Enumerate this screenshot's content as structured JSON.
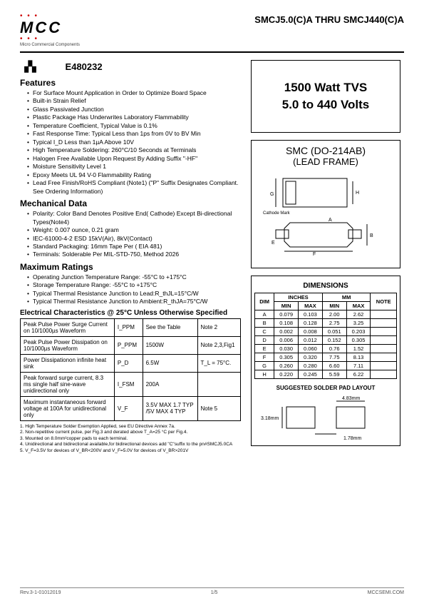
{
  "header": {
    "logo_text": "MCC",
    "logo_sub": "Micro Commercial Components",
    "part_range": "SMCJ5.0(C)A THRU SMCJ440(C)A"
  },
  "cert": {
    "ul": "UL",
    "number": "E480232"
  },
  "sections": {
    "features_h": "Features",
    "features": [
      "For Surface Mount Application in Order to Optimize Board Space",
      "Built-in Strain Relief",
      "Glass Passivated Junction",
      "Plastic Package Has Underwrites Laboratory Flammability",
      "Temperature Coefficient, Typical Value is 0.1%",
      "Fast Response Time: Typical Less than 1ps from 0V to BV Min",
      "Typical I_D Less than 1µA Above 10V",
      "High Temperature Soldering: 260°C/10 Seconds at Terminals",
      "Halogen Free Available Upon Request By Adding Suffix \"-HF\"",
      "Moisture Sensitivity Level 1",
      "Epoxy Meets UL 94 V-0 Flammability Rating",
      "Lead Free Finish/RoHS Compliant (Note1) (\"P\" Suffix Designates Compliant. See Ordering Information)"
    ],
    "mech_h": "Mechanical Data",
    "mech": [
      "Polarity: Color Band Denotes Positive End( Cathode) Except Bi-directional Types(Note4)",
      "Weight: 0.007 ounce, 0.21 gram",
      "IEC-61000-4-2 ESD 15kV(Air), 8kV(Contact)",
      "Standard Packaging: 16mm Tape Per ( EIA 481)",
      "Terminals: Solderable Per MIL-STD-750, Method 2026"
    ],
    "max_h": "Maximum Ratings",
    "max": [
      "Operating Junction Temperature Range: -55°C to +175°C",
      "Storage Temperature Range: -55°C to +175°C",
      "Typical Thermal Resistance Junction to Lead:R_thJL=15°C/W",
      "Typical Thermal Resistance Junction to Ambient:R_thJA=75°C/W"
    ],
    "elec_h": "Electrical Characteristics @ 25°C Unless Otherwise Specified"
  },
  "big_box": {
    "l1": "1500 Watt TVS",
    "l2": "5.0 to 440 Volts"
  },
  "pkg": {
    "l1": "SMC (DO-214AB)",
    "l2": "(LEAD FRAME)",
    "cathode": "Cathode Mark"
  },
  "elec_table": {
    "rows": [
      {
        "param": "Peak Pulse Power Surge Current on 10/1000µs  Waveform",
        "sym": "I_PPM",
        "val": "See the Table",
        "note": "Note 2"
      },
      {
        "param": "Peak Pulse Power Dissipation on 10/1000µs Waveform",
        "sym": "P_PPM",
        "val": "1500W",
        "note": "Note 2,3,Fig1"
      },
      {
        "param": "Power Dissipationon infinite heat sink",
        "sym": "P_D",
        "val": "6.5W",
        "note": "T_L = 75°C."
      },
      {
        "param": "Peak forward surge current, 8.3 ms single half sine-wave unidirectional only",
        "sym": "I_FSM",
        "val": "200A",
        "note": ""
      },
      {
        "param": "Maximum instantaneous forward voltage at 100A for unidirectional only",
        "sym": "V_F",
        "val": "3.5V MAX 1.7 TYP /5V MAX 4 TYP",
        "note": "Note 5"
      }
    ]
  },
  "dim_table": {
    "h": "DIMENSIONS",
    "cols": {
      "dim": "DIM",
      "in": "INCHES",
      "mm": "MM",
      "note": "NOTE",
      "min": "MIN",
      "max": "MAX"
    },
    "rows": [
      {
        "d": "A",
        "imin": "0.079",
        "imax": "0.103",
        "mmin": "2.00",
        "mmax": "2.62",
        "n": ""
      },
      {
        "d": "B",
        "imin": "0.108",
        "imax": "0.128",
        "mmin": "2.75",
        "mmax": "3.25",
        "n": ""
      },
      {
        "d": "C",
        "imin": "0.002",
        "imax": "0.008",
        "mmin": "0.051",
        "mmax": "0.203",
        "n": ""
      },
      {
        "d": "D",
        "imin": "0.006",
        "imax": "0.012",
        "mmin": "0.152",
        "mmax": "0.305",
        "n": ""
      },
      {
        "d": "E",
        "imin": "0.030",
        "imax": "0.060",
        "mmin": "0.76",
        "mmax": "1.52",
        "n": ""
      },
      {
        "d": "F",
        "imin": "0.305",
        "imax": "0.320",
        "mmin": "7.75",
        "mmax": "8.13",
        "n": ""
      },
      {
        "d": "G",
        "imin": "0.260",
        "imax": "0.280",
        "mmin": "6.60",
        "mmax": "7.11",
        "n": ""
      },
      {
        "d": "H",
        "imin": "0.220",
        "imax": "0.245",
        "mmin": "5.59",
        "mmax": "6.22",
        "n": ""
      }
    ]
  },
  "solder": {
    "h": "SUGGESTED SOLDER PAD LAYOUT",
    "w": "4.83mm",
    "h2": "3.18mm",
    "h3": "1.78mm"
  },
  "notes": [
    "1. High Temperature Solder Exemption Applied, see EU Directive Annex 7a.",
    "2. Non-repetitive current pulse, per Fig.3 and derated above T_A=25 °C per Fig.4.",
    "3. Mounted on 8.0mm²copper pads to each terminal.",
    "4. Unidirectional and bidirectional available,for bidirectional devices add \"C\"suffix to the pn#SMCJ5.0CA",
    "5. V_F=3.5V for devices of V_BR<200V and V_F=5.0V for devices of V_BR>201V"
  ],
  "footer": {
    "rev": "Rev.3-1-01012019",
    "page": "1/5",
    "url": "MCCSEMI.COM"
  }
}
